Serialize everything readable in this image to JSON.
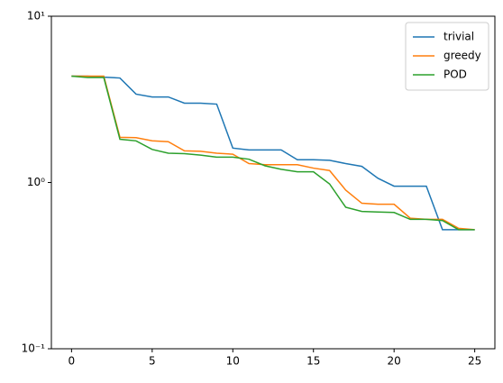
{
  "chart_data": {
    "type": "line",
    "x": [
      0,
      1,
      2,
      3,
      4,
      5,
      6,
      7,
      8,
      9,
      10,
      11,
      12,
      13,
      14,
      15,
      16,
      17,
      18,
      19,
      20,
      21,
      22,
      23,
      24,
      25
    ],
    "series": [
      {
        "name": "trivial",
        "color": "#1f77b4",
        "values": [
          4.36,
          4.36,
          4.3,
          4.25,
          3.4,
          3.27,
          3.27,
          3.0,
          3.0,
          2.96,
          1.61,
          1.57,
          1.57,
          1.57,
          1.37,
          1.37,
          1.36,
          1.3,
          1.25,
          1.06,
          0.95,
          0.95,
          0.95,
          0.52,
          0.52,
          0.52
        ]
      },
      {
        "name": "greedy",
        "color": "#ff7f0e",
        "values": [
          4.36,
          4.36,
          4.36,
          1.87,
          1.86,
          1.78,
          1.76,
          1.55,
          1.54,
          1.5,
          1.48,
          1.3,
          1.28,
          1.28,
          1.28,
          1.22,
          1.18,
          0.9,
          0.75,
          0.74,
          0.74,
          0.61,
          0.6,
          0.6,
          0.53,
          0.52
        ]
      },
      {
        "name": "POD",
        "color": "#2ca02c",
        "values": [
          4.36,
          4.28,
          4.28,
          1.82,
          1.78,
          1.58,
          1.5,
          1.49,
          1.46,
          1.42,
          1.42,
          1.38,
          1.26,
          1.2,
          1.16,
          1.16,
          0.98,
          0.71,
          0.67,
          0.665,
          0.66,
          0.6,
          0.6,
          0.59,
          0.52,
          0.52
        ]
      }
    ],
    "xlim": [
      -1.25,
      26.25
    ],
    "xticks": [
      0,
      5,
      10,
      15,
      20,
      25
    ],
    "ylim": [
      0.1,
      10
    ],
    "ylog": true,
    "yticks": [
      {
        "value": 0.1,
        "label": "10⁻¹"
      },
      {
        "value": 1,
        "label": "10⁰"
      },
      {
        "value": 10,
        "label": "10¹"
      }
    ],
    "legend": "upper right"
  }
}
